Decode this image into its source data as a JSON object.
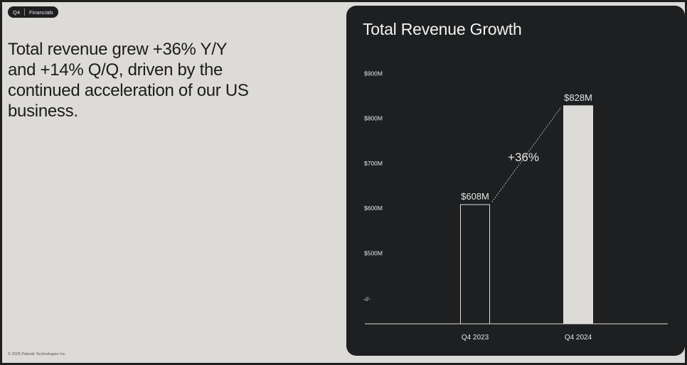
{
  "badge": {
    "period": "Q4",
    "section": "Financials"
  },
  "headline": "Total revenue grew +36% Y/Y and +14% Q/Q, driven by the continued acceleration of our US business.",
  "footer": "© 2025 Palantir Technologies Inc.",
  "chart_data": {
    "type": "bar",
    "title": "Total Revenue Growth",
    "categories": [
      "Q4 2023",
      "Q4 2024"
    ],
    "values": [
      608,
      828
    ],
    "value_labels": [
      "$608M",
      "$828M"
    ],
    "y_unit": "$M",
    "yticks": [
      500,
      600,
      700,
      800,
      900
    ],
    "ytick_labels": [
      "$500M",
      "$600M",
      "$700M",
      "$800M",
      "$900M"
    ],
    "axis_break_symbol": "-//-",
    "growth_annotation": "+36%",
    "grid": false,
    "colors": {
      "bar_q4_2023": "#1d1f21",
      "bar_q4_2024": "#dddbd8",
      "outline": "#dddbd8",
      "text": "#e6e6e6"
    }
  }
}
